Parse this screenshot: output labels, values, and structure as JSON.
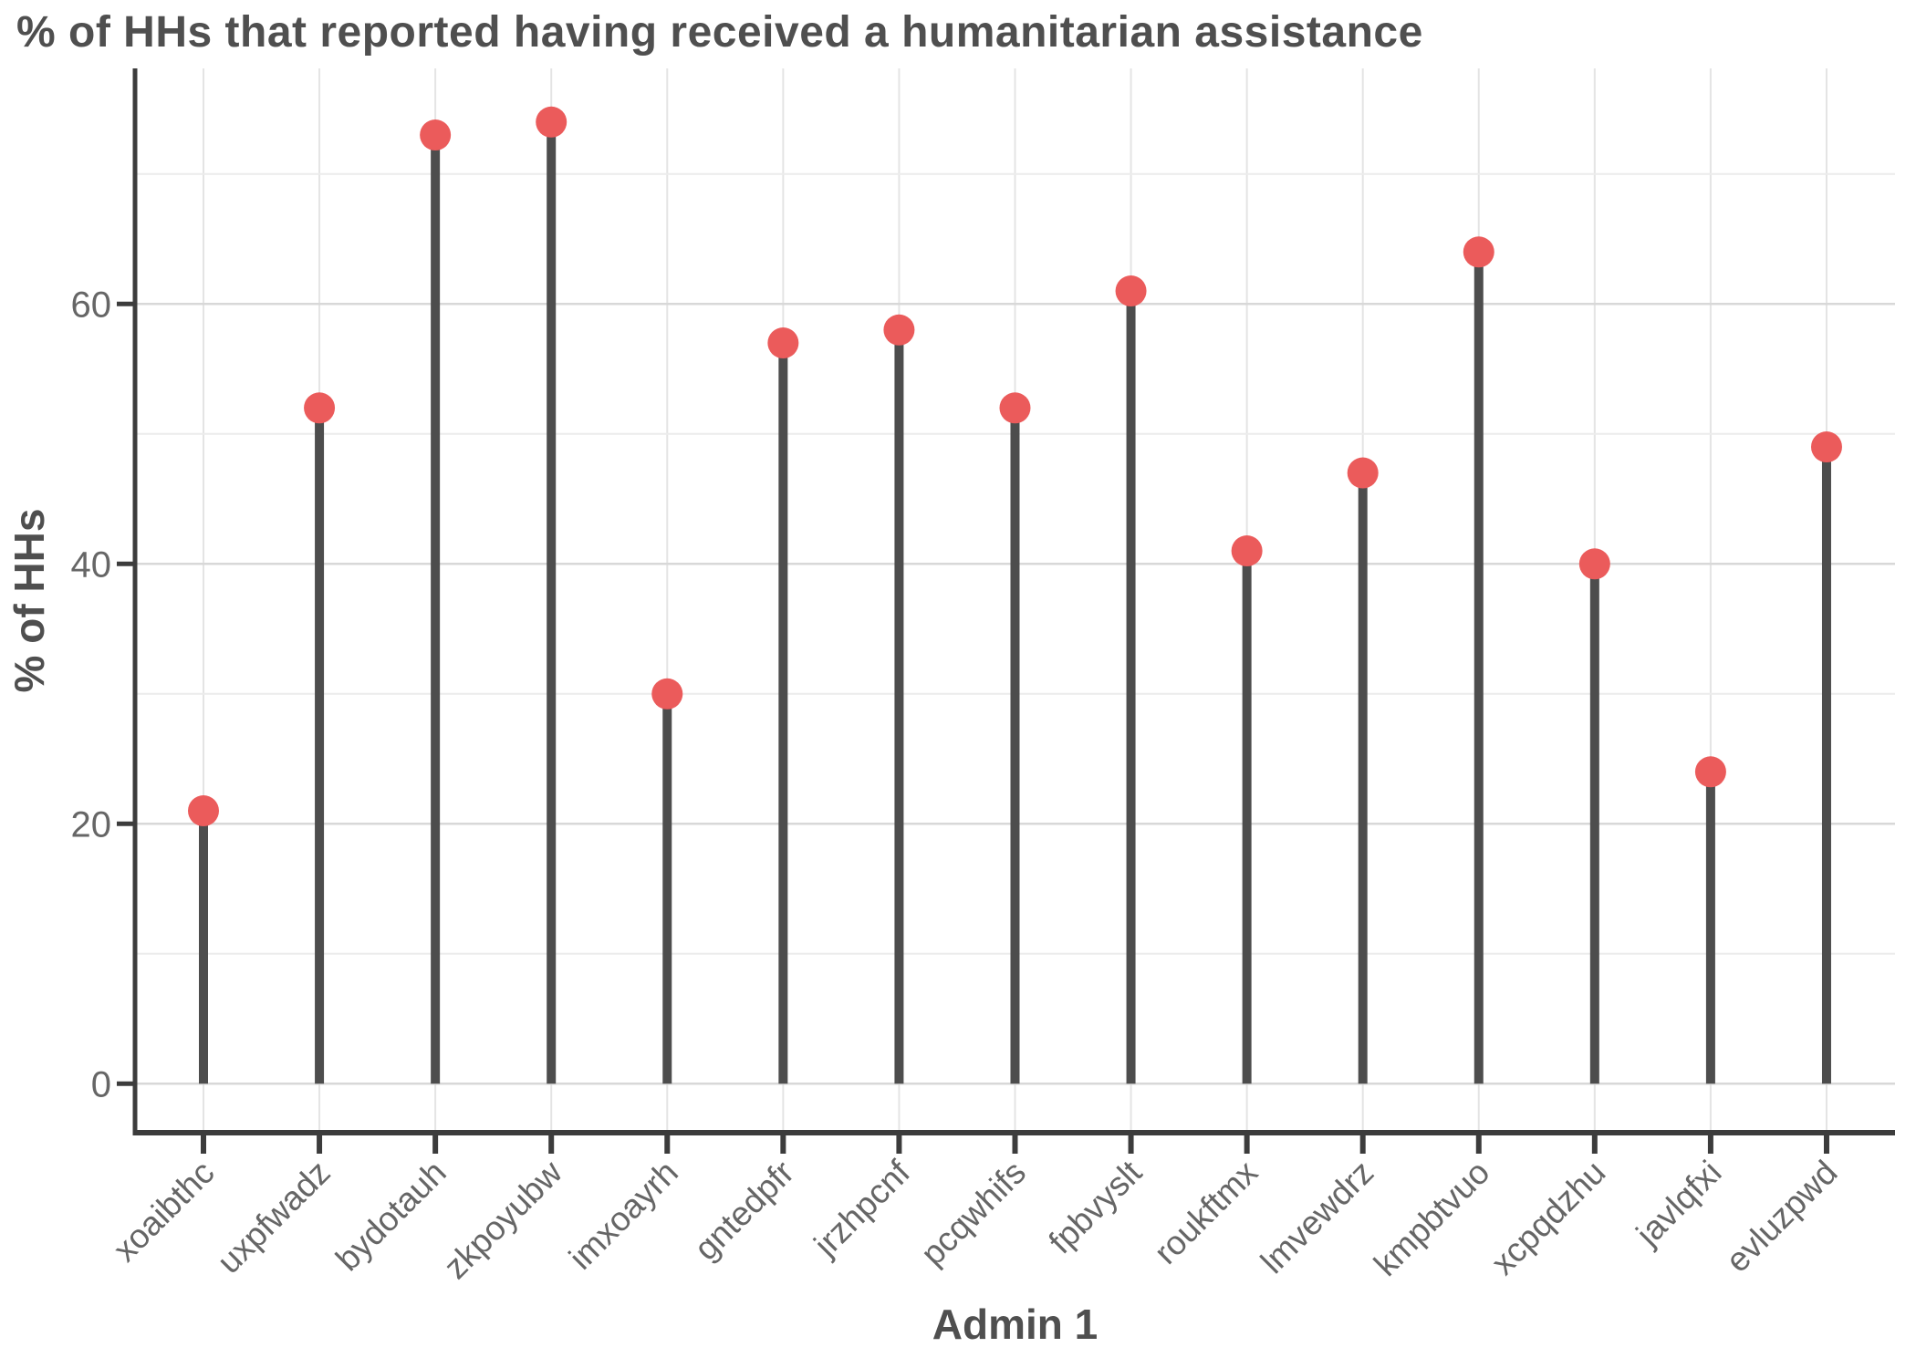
{
  "chart_data": {
    "type": "bar",
    "variant": "lollipop",
    "title": "% of HHs that reported having received a humanitarian assistance",
    "xlabel": "Admin 1",
    "ylabel": "% of HHs",
    "categories": [
      "xoaibthc",
      "uxpfwadz",
      "bydotauh",
      "zkpoyubw",
      "imxoayrh",
      "gntedpfr",
      "jrzhpcnf",
      "pcqwhifs",
      "fpbvyslt",
      "roukftmx",
      "lmvewdrz",
      "kmpbtvuo",
      "xcpqdzhu",
      "javlqfxi",
      "evluzpwd"
    ],
    "values": [
      21,
      52,
      73,
      74,
      30,
      57,
      58,
      52,
      61,
      41,
      47,
      64,
      40,
      24,
      49
    ],
    "ylim": [
      0,
      77
    ],
    "yticks": [
      0,
      20,
      40,
      60
    ],
    "minor_gridlines": [
      10,
      30,
      50,
      70
    ],
    "grid": true,
    "legend": false,
    "x_tick_rotation": 45,
    "colors": {
      "point": "#eb5b5b",
      "stem": "#4d4d4d",
      "axis_line": "#3c3c3c",
      "title_text": "#4f4f4f",
      "tick_label_text": "#666666",
      "major_gridline": "#d8d8d8",
      "minor_gridline": "#ececec",
      "vertical_gridline": "#e4e4e4",
      "background": "#ffffff"
    }
  }
}
